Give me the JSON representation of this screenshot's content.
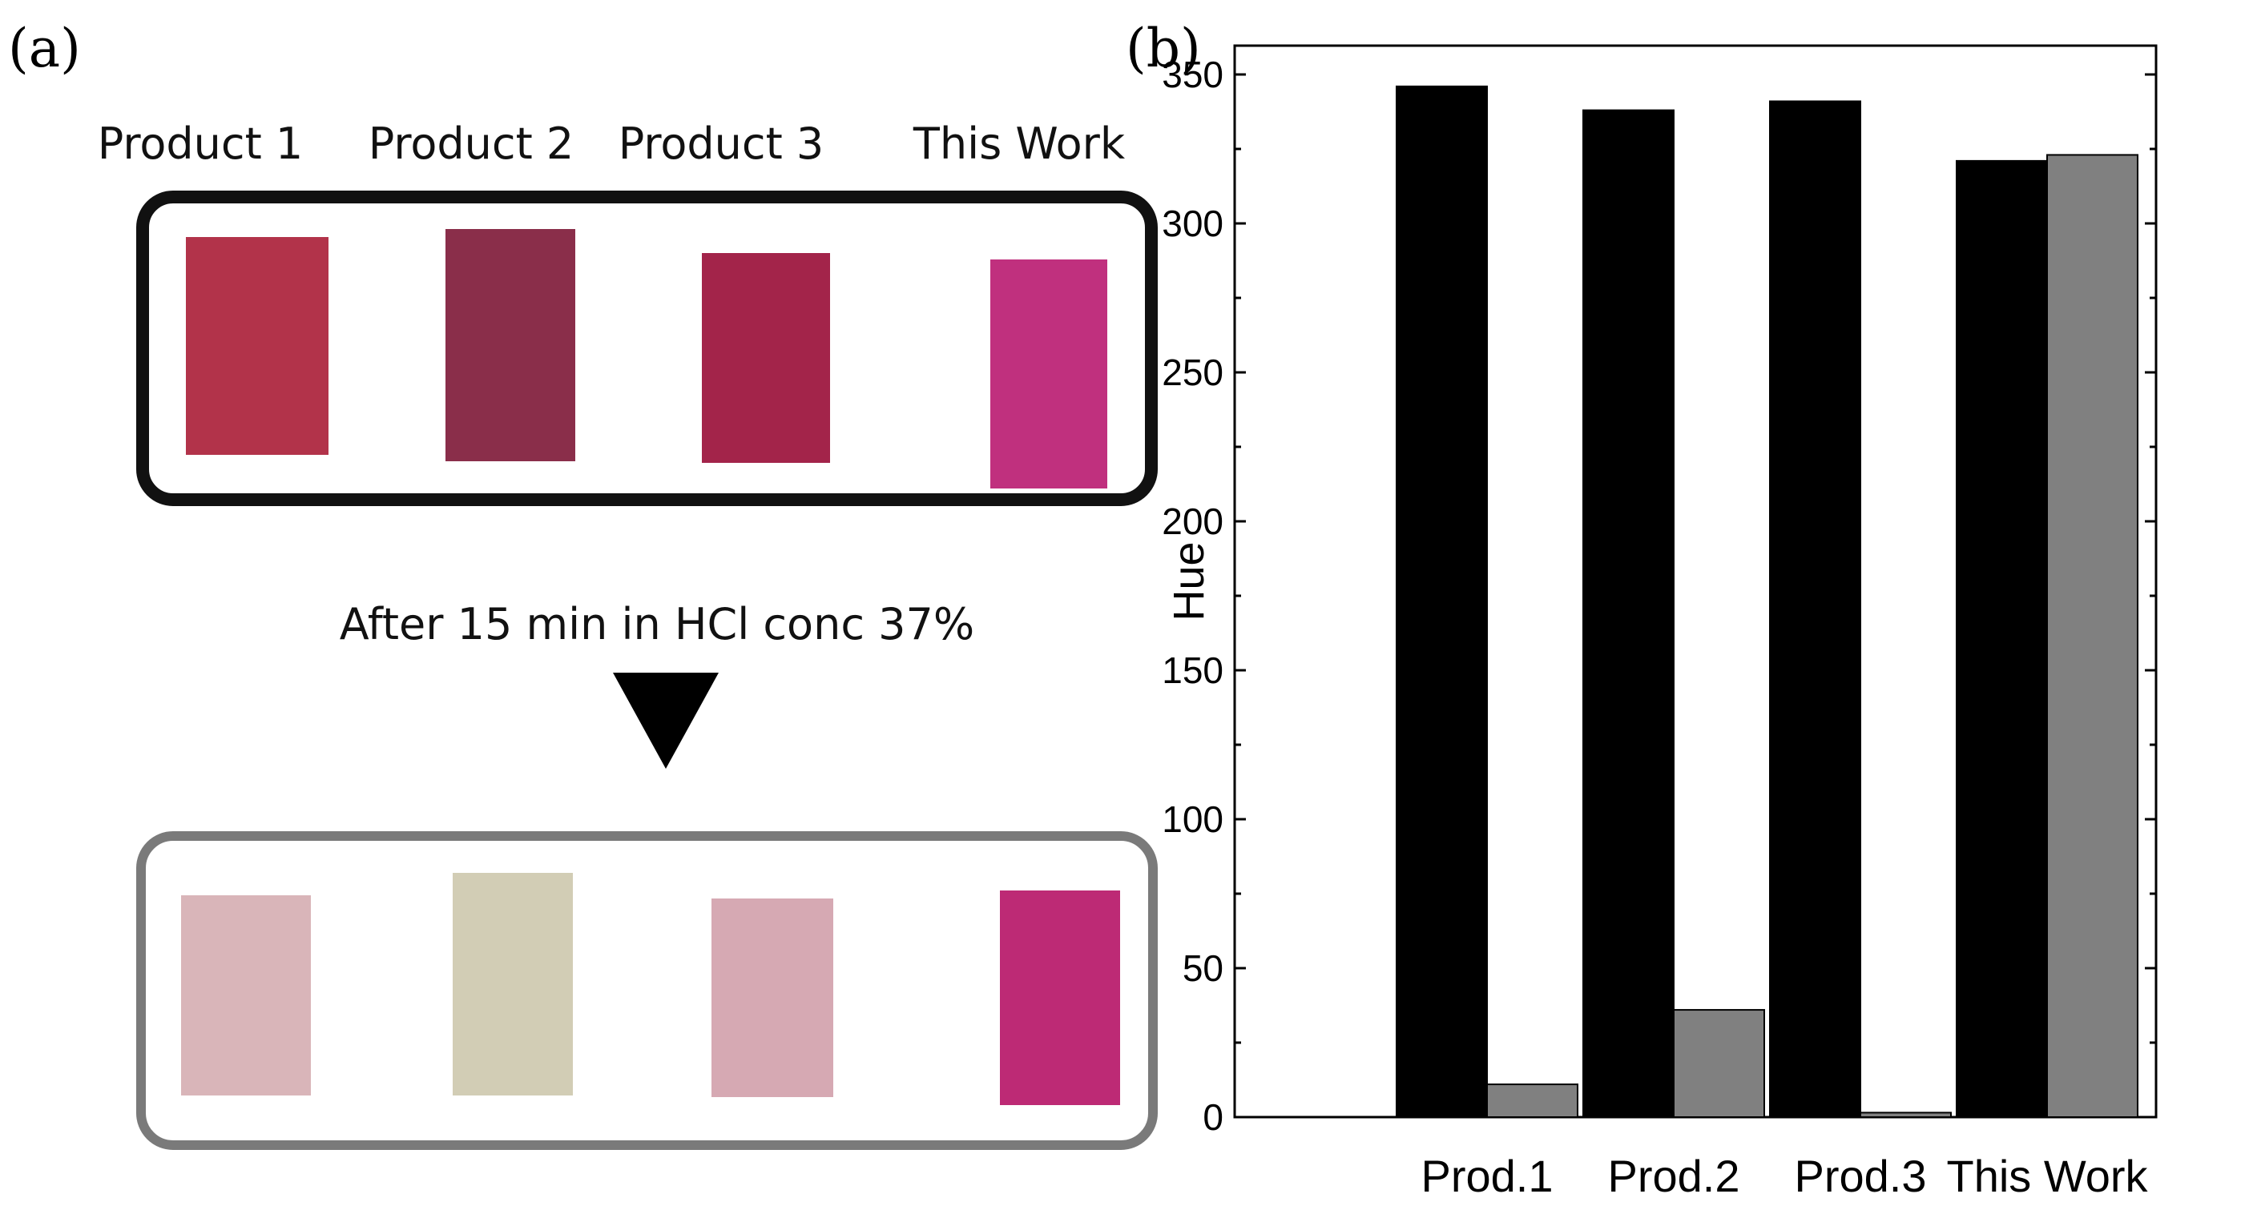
{
  "panel_a": {
    "label": "(a)",
    "products": [
      "Product 1",
      "Product 2",
      "Product 3",
      "This Work"
    ],
    "treatment": "After 15 min in HCl conc 37%",
    "colors_before": [
      "#b2334a",
      "#8a2e4a",
      "#a3244a",
      "#c0307e"
    ],
    "colors_after": [
      "#d9b5b9",
      "#d2cdb5",
      "#d6a9b3",
      "#bd2a75"
    ]
  },
  "panel_b": {
    "label": "(b)"
  },
  "chart_data": {
    "type": "bar",
    "categories": [
      "Prod.1",
      "Prod.2",
      "Prod.3",
      "This Work"
    ],
    "series": [
      {
        "values": [
          346,
          338,
          341,
          321
        ],
        "color": "#000000"
      },
      {
        "values": [
          11,
          36,
          1.5,
          323
        ],
        "color": "#808080"
      }
    ],
    "title": "",
    "xlabel": "",
    "ylabel": "Hue",
    "ylim": [
      0,
      350
    ],
    "yticks": [
      0,
      50,
      100,
      150,
      200,
      250,
      300,
      350
    ],
    "grid": false
  }
}
